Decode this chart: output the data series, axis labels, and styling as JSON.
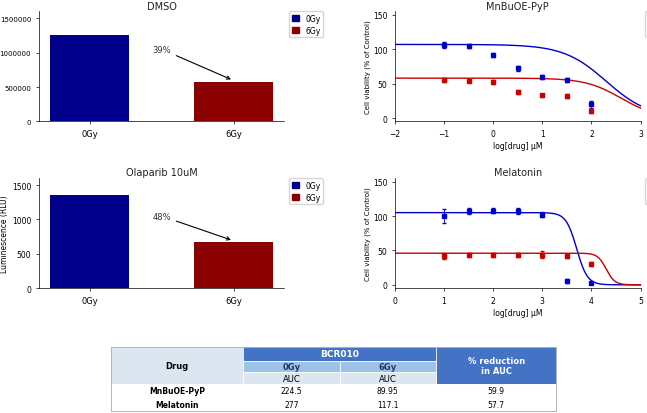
{
  "dmso_0gy": 1250000,
  "dmso_6gy": 575000,
  "dmso_pct": "39%",
  "olaparib_0gy": 1350,
  "olaparib_6gy": 670,
  "olaparib_pct": "48%",
  "bar_blue": "#00008B",
  "bar_red": "#8B0000",
  "mnbuoe_0gy_x": [
    -1,
    -0.5,
    0,
    0.5,
    1,
    1.5,
    2
  ],
  "mnbuoe_0gy_y": [
    106,
    105,
    92,
    72,
    60,
    55,
    20
  ],
  "mnbuoe_0gy_err": [
    4,
    3,
    3,
    4,
    3,
    3,
    5
  ],
  "mnbuoe_6gy_x": [
    -1,
    -0.5,
    0,
    0.5,
    1,
    1.5,
    2
  ],
  "mnbuoe_6gy_y": [
    55,
    54,
    52,
    38,
    33,
    32,
    10
  ],
  "mnbuoe_6gy_err": [
    3,
    2,
    3,
    3,
    2,
    3,
    3
  ],
  "melatonin_0gy_x": [
    1,
    1.5,
    2,
    2.5,
    3,
    3.5,
    4
  ],
  "melatonin_0gy_y": [
    100,
    107,
    108,
    107,
    102,
    5,
    2
  ],
  "melatonin_0gy_err": [
    10,
    4,
    4,
    4,
    4,
    3,
    1
  ],
  "melatonin_6gy_x": [
    1,
    1.5,
    2,
    2.5,
    3,
    3.5,
    4
  ],
  "melatonin_6gy_y": [
    42,
    44,
    44,
    44,
    44,
    42,
    30
  ],
  "melatonin_6gy_err": [
    4,
    3,
    3,
    3,
    5,
    3,
    3
  ],
  "line_blue": "#0000CD",
  "line_red": "#CC0000",
  "table_header_color": "#4472C4",
  "table_subheader_color": "#9DC3E6",
  "table_row_color": "#DCE6F1",
  "table_bg": "#BDD7EE",
  "drug_col": [
    "MnBuOE-PyP",
    "Melatonin"
  ],
  "auc_0gy": [
    224.5,
    277
  ],
  "auc_6gy": [
    89.95,
    117.1
  ],
  "pct_reduction": [
    59.9,
    57.7
  ]
}
